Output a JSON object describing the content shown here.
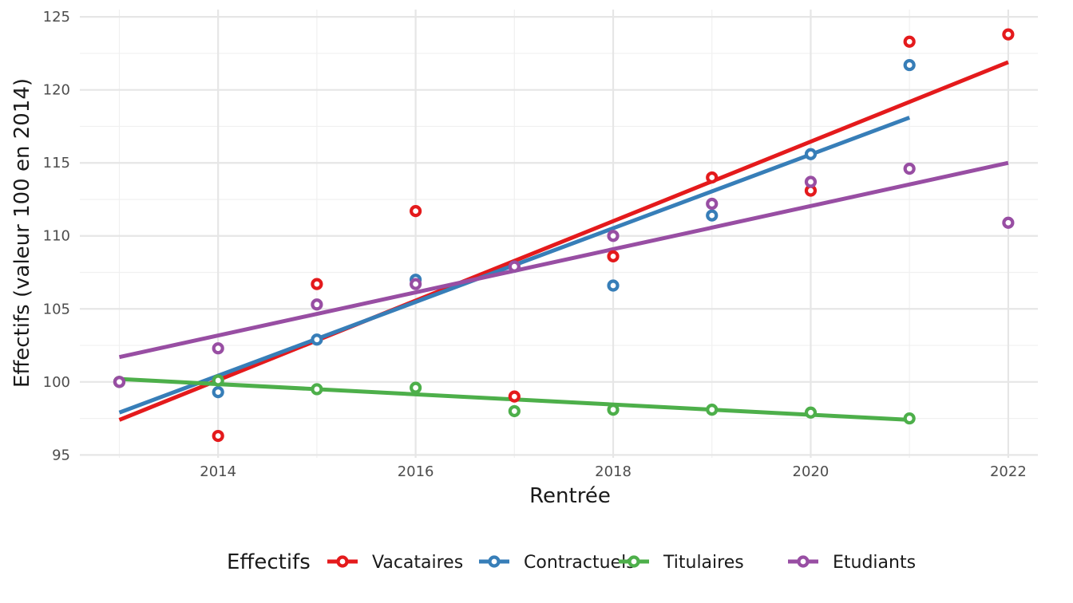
{
  "chart_data": {
    "type": "scatter",
    "xlabel": "Rentrée",
    "ylabel": "Effectifs (valeur 100 en 2014)",
    "xlim": [
      2012.6,
      2022.3
    ],
    "ylim": [
      94.8,
      125.5
    ],
    "xticks": [
      2014,
      2016,
      2018,
      2020,
      2022
    ],
    "yticks": [
      95,
      100,
      105,
      110,
      115,
      120,
      125
    ],
    "grid": true,
    "legend_title": "Effectifs",
    "legend_position": "bottom",
    "series": [
      {
        "name": "Vacataires",
        "color": "#e41a1c",
        "x": [
          2013,
          2014,
          2015,
          2016,
          2017,
          2018,
          2019,
          2020,
          2021,
          2022
        ],
        "y": [
          100.0,
          96.3,
          106.7,
          111.7,
          99.0,
          108.6,
          114.0,
          113.1,
          123.3,
          123.8
        ],
        "trend": [
          [
            2013,
            97.4
          ],
          [
            2022,
            121.9
          ]
        ]
      },
      {
        "name": "Contractuels",
        "color": "#377eb8",
        "x": [
          2013,
          2014,
          2015,
          2016,
          2017,
          2018,
          2019,
          2020,
          2021
        ],
        "y": [
          100.0,
          99.3,
          102.9,
          107.0,
          107.9,
          106.6,
          111.4,
          115.6,
          121.7
        ],
        "trend": [
          [
            2013,
            97.9
          ],
          [
            2021,
            118.1
          ]
        ]
      },
      {
        "name": "Titulaires",
        "color": "#4daf4a",
        "x": [
          2013,
          2014,
          2015,
          2016,
          2017,
          2018,
          2019,
          2020,
          2021
        ],
        "y": [
          100.0,
          100.1,
          99.5,
          99.6,
          98.0,
          98.1,
          98.1,
          97.9,
          97.5
        ],
        "trend": [
          [
            2013,
            100.2
          ],
          [
            2021,
            97.4
          ]
        ]
      },
      {
        "name": "Etudiants",
        "color": "#984ea3",
        "x": [
          2013,
          2014,
          2015,
          2016,
          2017,
          2018,
          2019,
          2020,
          2021,
          2022
        ],
        "y": [
          100.0,
          102.3,
          105.3,
          106.7,
          107.9,
          110.0,
          112.2,
          113.7,
          114.6,
          110.9
        ],
        "trend": [
          [
            2013,
            101.7
          ],
          [
            2022,
            115.0
          ]
        ]
      }
    ]
  }
}
